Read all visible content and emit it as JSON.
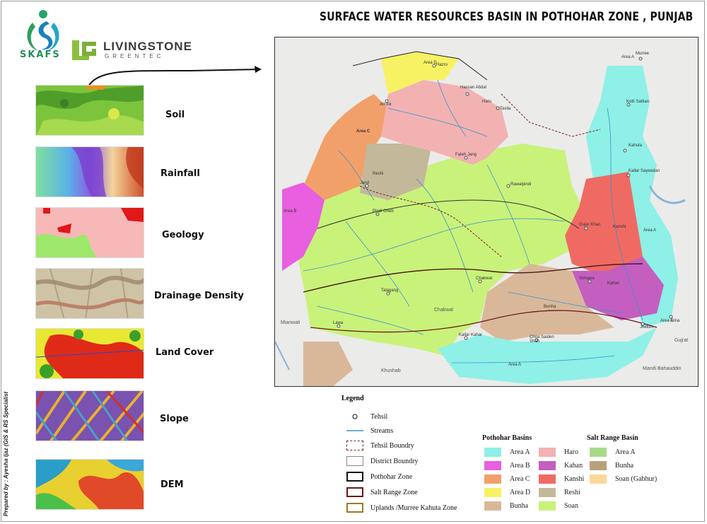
{
  "title": "SURFACE WATER RESOURCES BASIN IN POTHOHAR ZONE , PUNJAB",
  "logos": {
    "skafs": "SKAFS",
    "livingstone": "LIVINGSTONE",
    "livingstone_sub": "GREENTEC"
  },
  "credit": "Prepared by : Ayesha Ijaz (GIS & RS Specialist",
  "layers": [
    {
      "label": "Soil",
      "icon": "soil-map-thumbnail"
    },
    {
      "label": "Rainfall",
      "icon": "rainfall-map-thumbnail"
    },
    {
      "label": "Geology",
      "icon": "geology-map-thumbnail"
    },
    {
      "label": "Drainage Density",
      "icon": "drainage-density-map-thumbnail"
    },
    {
      "label": "Land Cover",
      "icon": "land-cover-map-thumbnail"
    },
    {
      "label": "Slope",
      "icon": "slope-map-thumbnail"
    },
    {
      "label": "DEM",
      "icon": "dem-map-thumbnail"
    }
  ],
  "map": {
    "places": [
      "Murree",
      "Hazro",
      "Hassan Abdal",
      "Attock",
      "Taxila",
      "Kotli Sattian",
      "Kahuta",
      "Kallar Sayeedan",
      "Fateh Jang",
      "Rawalpindi",
      "Jand",
      "Pindi Gheb",
      "Gujar Khan",
      "Sohawa",
      "Talagang",
      "Chakwal",
      "Lawa",
      "Kallar Kahar",
      "Choa Saiden Shah",
      "Jhelum",
      "Dina"
    ],
    "area_labels": [
      "Area C",
      "Area D",
      "Area B",
      "Reshi",
      "Haro",
      "Kanshi",
      "Kahan",
      "Bunha",
      "Area A",
      "Area A",
      "Area A",
      "Area A"
    ],
    "surroundings": [
      "Mianwali",
      "Khushab",
      "Chakwal",
      "Gujrat",
      "Mandi Bahauddin"
    ]
  },
  "legend": {
    "title": "Legend",
    "items": [
      {
        "label": "Tehsil",
        "icon": "tehsil-point-icon"
      },
      {
        "label": "Streams",
        "icon": "streams-line-icon"
      },
      {
        "label": "Tehsil Boundry",
        "icon": "tehsil-boundary-icon"
      },
      {
        "label": "District Boundry",
        "icon": "district-boundary-icon"
      },
      {
        "label": "Pothohar Zone",
        "icon": "pothohar-zone-icon"
      },
      {
        "label": "Salt Range Zone",
        "icon": "salt-range-zone-icon"
      },
      {
        "label": "Uplands /Murree Kahuta Zone",
        "icon": "uplands-zone-icon"
      }
    ],
    "pothohar_title": "Pothohar Basins",
    "pothohar_col1": [
      {
        "label": "Area A",
        "color": "#8ef0e6"
      },
      {
        "label": "Area B",
        "color": "#e85fe0"
      },
      {
        "label": "Area C",
        "color": "#f2a06a"
      },
      {
        "label": "Area D",
        "color": "#f7f264"
      },
      {
        "label": "Bunha",
        "color": "#d9b89a"
      }
    ],
    "pothohar_col2": [
      {
        "label": "Haro",
        "color": "#f2b2b2"
      },
      {
        "label": "Kahan",
        "color": "#c45fc0"
      },
      {
        "label": "Kanshi",
        "color": "#f06a64"
      },
      {
        "label": "Reshi",
        "color": "#c3b99a"
      },
      {
        "label": "Soan",
        "color": "#c9f27a"
      }
    ],
    "salt_title": "Salt Range Basin",
    "salt_items": [
      {
        "label": "Area A",
        "color": "#a8d98a"
      },
      {
        "label": "Bunha",
        "color": "#b8a07c"
      },
      {
        "label": "Soan (Gabhur)",
        "color": "#fcd79a"
      }
    ]
  }
}
